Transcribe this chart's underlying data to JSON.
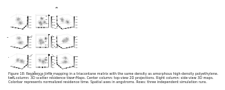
{
  "title": "Figure 18",
  "nrows": 3,
  "ncols": 3,
  "background_color": "#ffffff",
  "colormap": "Greys_r",
  "caption_lines": [
    "Figure 18: Residence time mapping in a triacontane matrix with the same density as amorphous high-density polyethylene.",
    "Left column: 3D scatter residence time maps. Center column: top-view 2D projections. Right column: side-view 3D maps.",
    "Colorbar represents normalized residence time. Spatial axes in angstroms. Rows: three independent simulation runs."
  ],
  "caption_fontsize": 3.5,
  "panel_configs": [
    {
      "nc": 2,
      "sp": 0.22,
      "elev": 20,
      "azim": -65,
      "npts": 400,
      "col_type": "3d"
    },
    {
      "nc": 4,
      "sp": 0.2,
      "elev": 88,
      "azim": -90,
      "npts": 500,
      "col_type": "top"
    },
    {
      "nc": 2,
      "sp": 0.22,
      "elev": 20,
      "azim": 65,
      "npts": 350,
      "col_type": "3d"
    },
    {
      "nc": 3,
      "sp": 0.25,
      "elev": 18,
      "azim": -60,
      "npts": 450,
      "col_type": "3d"
    },
    {
      "nc": 5,
      "sp": 0.18,
      "elev": 88,
      "azim": -90,
      "npts": 500,
      "col_type": "top"
    },
    {
      "nc": 3,
      "sp": 0.22,
      "elev": 18,
      "azim": 60,
      "npts": 380,
      "col_type": "3d"
    },
    {
      "nc": 3,
      "sp": 0.2,
      "elev": 22,
      "azim": -62,
      "npts": 420,
      "col_type": "3d"
    },
    {
      "nc": 4,
      "sp": 0.19,
      "elev": 88,
      "azim": -90,
      "npts": 460,
      "col_type": "top"
    },
    {
      "nc": 3,
      "sp": 0.21,
      "elev": 22,
      "azim": 62,
      "npts": 360,
      "col_type": "3d"
    }
  ]
}
